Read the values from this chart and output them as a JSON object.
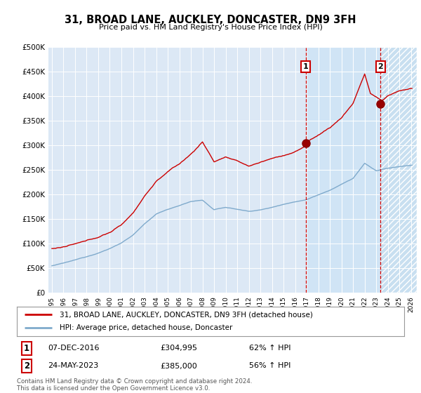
{
  "title": "31, BROAD LANE, AUCKLEY, DONCASTER, DN9 3FH",
  "subtitle": "Price paid vs. HM Land Registry's House Price Index (HPI)",
  "property_label": "31, BROAD LANE, AUCKLEY, DONCASTER, DN9 3FH (detached house)",
  "hpi_label": "HPI: Average price, detached house, Doncaster",
  "transaction1_date": "07-DEC-2016",
  "transaction1_price": "£304,995",
  "transaction1_hpi": "62% ↑ HPI",
  "transaction1_year": 2016.92,
  "transaction1_value": 304995,
  "transaction2_date": "24-MAY-2023",
  "transaction2_price": "£385,000",
  "transaction2_hpi": "56% ↑ HPI",
  "transaction2_year": 2023.38,
  "transaction2_value": 385000,
  "footer": "Contains HM Land Registry data © Crown copyright and database right 2024.\nThis data is licensed under the Open Government Licence v3.0.",
  "property_color": "#cc0000",
  "hpi_color": "#7faacc",
  "dashed_color": "#cc0000",
  "plot_bg_color": "#dce8f5",
  "highlight_bg_color": "#ccddf0",
  "ylim": [
    0,
    500000
  ],
  "yticks": [
    0,
    50000,
    100000,
    150000,
    200000,
    250000,
    300000,
    350000,
    400000,
    450000,
    500000
  ],
  "year_start": 1995,
  "year_end": 2026
}
